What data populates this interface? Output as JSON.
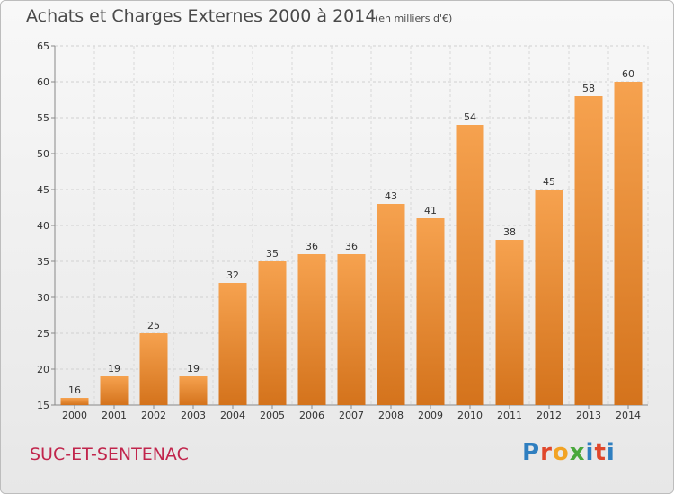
{
  "header": {
    "title": "Achats et Charges Externes 2000 à 2014",
    "unit": "(en milliers d'€)"
  },
  "footer": {
    "commune": "SUC-ET-SENTENAC",
    "logo_text": "Proxiti"
  },
  "colors": {
    "bar_light": "#f6a24f",
    "bar_dark": "#d4731c",
    "commune_text": "#c1254c"
  },
  "chart_data": {
    "type": "bar",
    "title": "Achats et Charges Externes 2000 à 2014",
    "subtitle": "(en milliers d'€)",
    "categories": [
      "2000",
      "2001",
      "2002",
      "2003",
      "2004",
      "2005",
      "2006",
      "2007",
      "2008",
      "2009",
      "2010",
      "2011",
      "2012",
      "2013",
      "2014"
    ],
    "values": [
      16,
      19,
      25,
      19,
      32,
      35,
      36,
      36,
      43,
      41,
      54,
      38,
      45,
      58,
      60
    ],
    "ylim": [
      15,
      65
    ],
    "yticks": [
      15,
      20,
      25,
      30,
      35,
      40,
      45,
      50,
      55,
      60,
      65
    ],
    "grid": true,
    "legend": "none"
  }
}
